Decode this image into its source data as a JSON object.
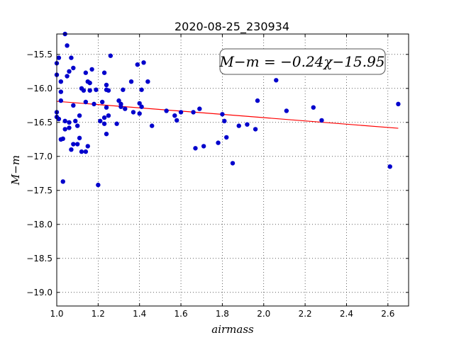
{
  "chart_data": {
    "type": "scatter",
    "title": "2020-08-25_230934",
    "xlabel": "airmass",
    "ylabel": "M−m",
    "xlim": [
      1.0,
      2.7
    ],
    "ylim": [
      -19.2,
      -15.2
    ],
    "y_inverted": true,
    "x_ticks": [
      "1.0",
      "1.2",
      "1.4",
      "1.6",
      "1.8",
      "2.0",
      "2.2",
      "2.4",
      "2.6"
    ],
    "x_tick_values": [
      1.0,
      1.2,
      1.4,
      1.6,
      1.8,
      2.0,
      2.2,
      2.4,
      2.6
    ],
    "y_ticks": [
      "−15.5",
      "−16.0",
      "−16.5",
      "−17.0",
      "−17.5",
      "−18.0",
      "−18.5",
      "−19.0"
    ],
    "y_tick_values": [
      -15.5,
      -16.0,
      -16.5,
      -17.0,
      -17.5,
      -18.0,
      -18.5,
      -19.0
    ],
    "grid": true,
    "annotation": "M−m = −0.24χ−15.95",
    "fit": {
      "slope": -0.24,
      "intercept": -15.95,
      "x_range": [
        1.0,
        2.65
      ],
      "color": "#ff0000"
    },
    "point_color": "#0000cc",
    "points": [
      [
        1.0,
        -15.63
      ],
      [
        1.0,
        -15.8
      ],
      [
        1.0,
        -16.35
      ],
      [
        1.0,
        -16.42
      ],
      [
        1.01,
        -15.55
      ],
      [
        1.01,
        -16.45
      ],
      [
        1.02,
        -15.9
      ],
      [
        1.02,
        -16.05
      ],
      [
        1.02,
        -16.18
      ],
      [
        1.02,
        -16.75
      ],
      [
        1.03,
        -17.37
      ],
      [
        1.03,
        -16.74
      ],
      [
        1.04,
        -15.2
      ],
      [
        1.04,
        -16.6
      ],
      [
        1.04,
        -16.48
      ],
      [
        1.05,
        -15.37
      ],
      [
        1.05,
        -15.82
      ],
      [
        1.06,
        -15.75
      ],
      [
        1.06,
        -16.58
      ],
      [
        1.06,
        -16.5
      ],
      [
        1.07,
        -16.9
      ],
      [
        1.07,
        -15.55
      ],
      [
        1.08,
        -15.7
      ],
      [
        1.08,
        -16.25
      ],
      [
        1.08,
        -16.82
      ],
      [
        1.09,
        -16.48
      ],
      [
        1.1,
        -16.55
      ],
      [
        1.1,
        -16.82
      ],
      [
        1.11,
        -16.73
      ],
      [
        1.11,
        -16.4
      ],
      [
        1.12,
        -16.93
      ],
      [
        1.12,
        -16.0
      ],
      [
        1.13,
        -16.03
      ],
      [
        1.14,
        -15.77
      ],
      [
        1.14,
        -16.2
      ],
      [
        1.14,
        -16.93
      ],
      [
        1.15,
        -16.85
      ],
      [
        1.15,
        -15.9
      ],
      [
        1.16,
        -15.92
      ],
      [
        1.16,
        -16.03
      ],
      [
        1.17,
        -15.72
      ],
      [
        1.18,
        -16.23
      ],
      [
        1.19,
        -16.02
      ],
      [
        1.2,
        -17.42
      ],
      [
        1.21,
        -16.48
      ],
      [
        1.22,
        -16.2
      ],
      [
        1.23,
        -15.77
      ],
      [
        1.23,
        -16.43
      ],
      [
        1.23,
        -16.52
      ],
      [
        1.24,
        -15.95
      ],
      [
        1.24,
        -16.02
      ],
      [
        1.24,
        -16.28
      ],
      [
        1.24,
        -16.67
      ],
      [
        1.25,
        -16.03
      ],
      [
        1.25,
        -16.4
      ],
      [
        1.26,
        -15.52
      ],
      [
        1.29,
        -16.52
      ],
      [
        1.3,
        -16.18
      ],
      [
        1.31,
        -16.23
      ],
      [
        1.31,
        -16.27
      ],
      [
        1.32,
        -16.02
      ],
      [
        1.33,
        -16.3
      ],
      [
        1.36,
        -15.9
      ],
      [
        1.37,
        -16.35
      ],
      [
        1.39,
        -15.65
      ],
      [
        1.4,
        -16.22
      ],
      [
        1.4,
        -16.37
      ],
      [
        1.41,
        -16.02
      ],
      [
        1.41,
        -16.27
      ],
      [
        1.42,
        -15.62
      ],
      [
        1.44,
        -15.9
      ],
      [
        1.46,
        -16.55
      ],
      [
        1.53,
        -16.33
      ],
      [
        1.57,
        -16.4
      ],
      [
        1.58,
        -16.47
      ],
      [
        1.6,
        -16.35
      ],
      [
        1.66,
        -16.35
      ],
      [
        1.67,
        -16.88
      ],
      [
        1.69,
        -16.3
      ],
      [
        1.71,
        -16.85
      ],
      [
        1.78,
        -16.8
      ],
      [
        1.8,
        -16.38
      ],
      [
        1.81,
        -16.48
      ],
      [
        1.82,
        -16.72
      ],
      [
        1.85,
        -17.1
      ],
      [
        1.88,
        -16.55
      ],
      [
        1.92,
        -16.53
      ],
      [
        1.96,
        -16.6
      ],
      [
        1.97,
        -16.18
      ],
      [
        2.06,
        -15.88
      ],
      [
        2.11,
        -16.33
      ],
      [
        2.24,
        -16.28
      ],
      [
        2.28,
        -16.47
      ],
      [
        2.61,
        -17.15
      ],
      [
        2.65,
        -16.23
      ]
    ]
  }
}
